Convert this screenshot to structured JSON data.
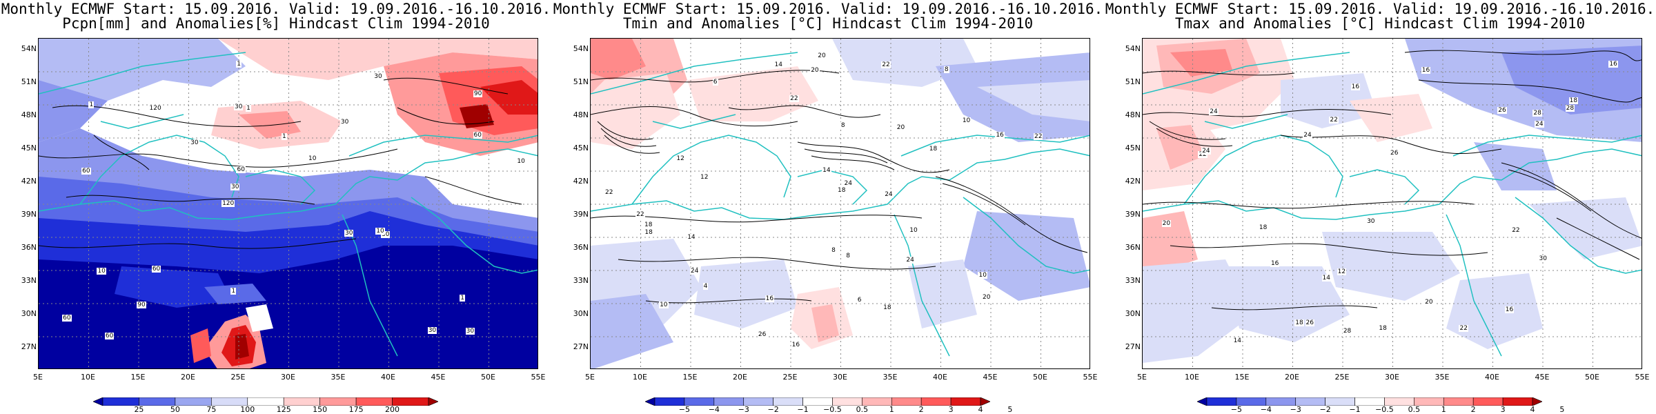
{
  "panels": [
    {
      "title_line1": "Monthly ECMWF Start: 15.09.2016. Valid: 19.09.2016.-16.10.2016.",
      "title_line2": "Pcpn[mm] and Anomalies[%] Hindcast Clim 1994-2010",
      "colorbar": {
        "labels": [
          "25",
          "50",
          "75",
          "100",
          "125",
          "150",
          "175",
          "200"
        ],
        "colors": [
          "#0000a0",
          "#1f2fd8",
          "#5a6ae8",
          "#9aa6f0",
          "#d8dcf8",
          "#ffffff",
          "#ffd0d0",
          "#ff9a9a",
          "#ff5a5a",
          "#e01818",
          "#a00000"
        ]
      },
      "contour_labels": [
        "30",
        "60",
        "90",
        "120",
        "30",
        "60",
        "30",
        "1",
        "10",
        "30",
        "60",
        "90",
        "1",
        "10",
        "30",
        "1",
        "1",
        "10",
        "30",
        "60",
        "30",
        "1",
        "60",
        "120",
        "30",
        "60",
        "30",
        "1",
        "10"
      ]
    },
    {
      "title_line1": "Monthly ECMWF Start: 15.09.2016. Valid: 19.09.2016.-16.10.2016.",
      "title_line2": "Tmin and Anomalies [°C] Hindcast Clim 1994-2010",
      "colorbar": {
        "labels": [
          "−5",
          "−4",
          "−3",
          "−2",
          "−1",
          "−0.5",
          "0.5",
          "1",
          "2",
          "3",
          "4",
          "5"
        ],
        "colors": [
          "#0000a0",
          "#1f2fd8",
          "#5a6ae8",
          "#8c96ee",
          "#b4bcf4",
          "#dadef8",
          "#ffffff",
          "#ffe0e0",
          "#ffb8b8",
          "#ff8a8a",
          "#ff5a5a",
          "#e01818",
          "#a00000"
        ]
      },
      "contour_labels": [
        "10",
        "8",
        "6",
        "10",
        "8",
        "12",
        "14",
        "10",
        "16",
        "18",
        "22",
        "20",
        "24",
        "18",
        "16",
        "14",
        "20",
        "22",
        "24",
        "26",
        "18",
        "20",
        "22",
        "24",
        "14",
        "16",
        "18",
        "22",
        "8",
        "10",
        "12",
        "4",
        "6",
        "8",
        "10",
        "18",
        "22",
        "24",
        "20"
      ]
    },
    {
      "title_line1": "Monthly ECMWF Start: 15.09.2016. Valid: 19.09.2016.-16.10.2016.",
      "title_line2": "Tmax and Anomalies [°C] Hindcast Clim 1994-2010",
      "colorbar": {
        "labels": [
          "−5",
          "−4",
          "−3",
          "−2",
          "−1",
          "−0.5",
          "0.5",
          "1",
          "2",
          "3",
          "4",
          "5"
        ],
        "colors": [
          "#0000a0",
          "#1f2fd8",
          "#5a6ae8",
          "#8c96ee",
          "#b4bcf4",
          "#dadef8",
          "#ffffff",
          "#ffe0e0",
          "#ffb8b8",
          "#ff8a8a",
          "#ff5a5a",
          "#e01818",
          "#a00000"
        ]
      },
      "contour_labels": [
        "14",
        "12",
        "16",
        "14",
        "16",
        "18",
        "16",
        "18",
        "20",
        "22",
        "24",
        "26",
        "28",
        "30",
        "24",
        "22",
        "18",
        "20",
        "16",
        "22",
        "24",
        "26",
        "28",
        "30",
        "16",
        "18",
        "22",
        "24",
        "26",
        "28"
      ]
    }
  ],
  "axes": {
    "lat_labels": [
      "54N",
      "51N",
      "48N",
      "45N",
      "42N",
      "39N",
      "36N",
      "33N",
      "30N",
      "27N"
    ],
    "lon_labels": [
      "5E",
      "10E",
      "15E",
      "20E",
      "25E",
      "30E",
      "35E",
      "40E",
      "45E",
      "50E",
      "55E"
    ]
  }
}
